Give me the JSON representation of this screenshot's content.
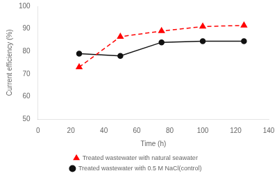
{
  "chart_data": {
    "type": "line",
    "x_label": "Time (h)",
    "y_label": "Current efficiency (%)",
    "x": [
      25,
      50,
      75,
      100,
      125
    ],
    "series": [
      {
        "name": "Treated wastewater with natural seawater",
        "color": "#ff0000",
        "values": [
          73,
          86.5,
          89,
          91,
          91.5
        ],
        "marker": "triangle",
        "line_style": "dashed"
      },
      {
        "name": "Treated wastewater with 0.5 M NaCl(control)",
        "color": "#111111",
        "values": [
          79,
          78,
          84,
          84.5,
          84.5
        ],
        "marker": "circle",
        "line_style": "solid"
      }
    ],
    "xlim": [
      0,
      140
    ],
    "ylim": [
      50,
      100
    ],
    "xticks": [
      0,
      20,
      40,
      60,
      80,
      100,
      120,
      140
    ],
    "yticks": [
      50,
      60,
      70,
      80,
      90,
      100
    ],
    "grid": false,
    "legend": "bottom"
  }
}
